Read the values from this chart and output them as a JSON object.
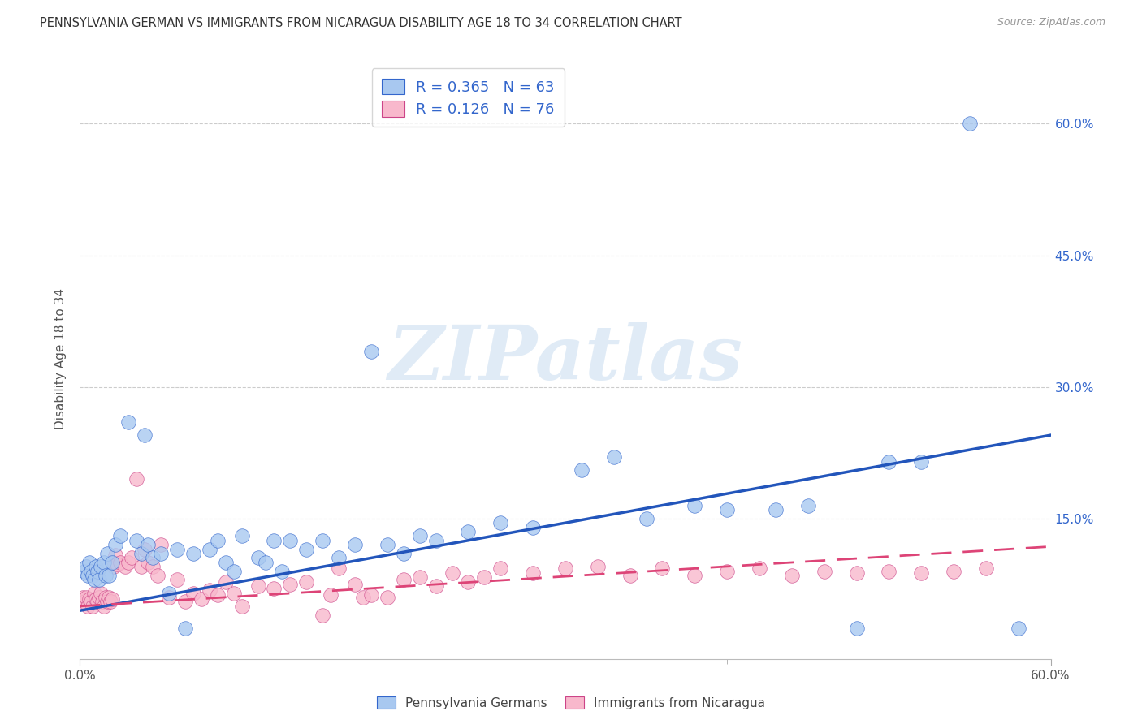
{
  "title": "PENNSYLVANIA GERMAN VS IMMIGRANTS FROM NICARAGUA DISABILITY AGE 18 TO 34 CORRELATION CHART",
  "source": "Source: ZipAtlas.com",
  "ylabel": "Disability Age 18 to 34",
  "xlim": [
    0.0,
    0.6
  ],
  "ylim": [
    -0.01,
    0.675
  ],
  "ytick_positions": [
    0.15,
    0.3,
    0.45,
    0.6
  ],
  "ytick_labels": [
    "15.0%",
    "30.0%",
    "45.0%",
    "60.0%"
  ],
  "xtick_labels": [
    "0.0%",
    "60.0%"
  ],
  "blue_fill": "#a8c8f0",
  "blue_edge": "#3366cc",
  "pink_fill": "#f8b8cc",
  "pink_edge": "#cc4488",
  "blue_line_color": "#2255bb",
  "pink_line_color": "#dd4477",
  "right_axis_color": "#3366cc",
  "watermark_text": "ZIPatlas",
  "bottom_label_blue": "Pennsylvania Germans",
  "bottom_label_pink": "Immigrants from Nicaragua",
  "legend_blue_R": "0.365",
  "legend_blue_N": "63",
  "legend_pink_R": "0.126",
  "legend_pink_N": "76",
  "blue_trend_x": [
    0.0,
    0.6
  ],
  "blue_trend_y": [
    0.045,
    0.245
  ],
  "pink_trend_x": [
    0.0,
    0.6
  ],
  "pink_trend_y": [
    0.05,
    0.118
  ],
  "blue_x": [
    0.003,
    0.004,
    0.005,
    0.006,
    0.007,
    0.008,
    0.009,
    0.01,
    0.011,
    0.012,
    0.013,
    0.015,
    0.016,
    0.017,
    0.018,
    0.02,
    0.022,
    0.025,
    0.03,
    0.035,
    0.038,
    0.04,
    0.042,
    0.045,
    0.05,
    0.055,
    0.06,
    0.065,
    0.07,
    0.08,
    0.085,
    0.09,
    0.095,
    0.1,
    0.11,
    0.115,
    0.12,
    0.125,
    0.13,
    0.14,
    0.15,
    0.16,
    0.17,
    0.18,
    0.19,
    0.2,
    0.21,
    0.22,
    0.24,
    0.26,
    0.28,
    0.31,
    0.33,
    0.35,
    0.38,
    0.4,
    0.43,
    0.45,
    0.48,
    0.5,
    0.52,
    0.55,
    0.58
  ],
  "blue_y": [
    0.09,
    0.095,
    0.085,
    0.1,
    0.09,
    0.085,
    0.08,
    0.095,
    0.09,
    0.08,
    0.095,
    0.1,
    0.085,
    0.11,
    0.085,
    0.1,
    0.12,
    0.13,
    0.26,
    0.125,
    0.11,
    0.245,
    0.12,
    0.105,
    0.11,
    0.065,
    0.115,
    0.025,
    0.11,
    0.115,
    0.125,
    0.1,
    0.09,
    0.13,
    0.105,
    0.1,
    0.125,
    0.09,
    0.125,
    0.115,
    0.125,
    0.105,
    0.12,
    0.34,
    0.12,
    0.11,
    0.13,
    0.125,
    0.135,
    0.145,
    0.14,
    0.205,
    0.22,
    0.15,
    0.165,
    0.16,
    0.16,
    0.165,
    0.025,
    0.215,
    0.215,
    0.6,
    0.025
  ],
  "pink_x": [
    0.002,
    0.003,
    0.004,
    0.005,
    0.006,
    0.007,
    0.008,
    0.009,
    0.01,
    0.011,
    0.012,
    0.013,
    0.014,
    0.015,
    0.016,
    0.017,
    0.018,
    0.019,
    0.02,
    0.021,
    0.022,
    0.023,
    0.025,
    0.028,
    0.03,
    0.032,
    0.035,
    0.038,
    0.04,
    0.042,
    0.045,
    0.048,
    0.05,
    0.055,
    0.06,
    0.065,
    0.07,
    0.075,
    0.08,
    0.085,
    0.09,
    0.095,
    0.1,
    0.11,
    0.12,
    0.13,
    0.14,
    0.15,
    0.155,
    0.16,
    0.17,
    0.175,
    0.18,
    0.19,
    0.2,
    0.21,
    0.22,
    0.23,
    0.24,
    0.25,
    0.26,
    0.28,
    0.3,
    0.32,
    0.34,
    0.36,
    0.38,
    0.4,
    0.42,
    0.44,
    0.46,
    0.48,
    0.5,
    0.52,
    0.54,
    0.56
  ],
  "pink_y": [
    0.06,
    0.055,
    0.06,
    0.05,
    0.058,
    0.055,
    0.05,
    0.065,
    0.058,
    0.055,
    0.06,
    0.065,
    0.055,
    0.05,
    0.06,
    0.055,
    0.06,
    0.055,
    0.058,
    0.095,
    0.108,
    0.098,
    0.1,
    0.095,
    0.1,
    0.105,
    0.195,
    0.095,
    0.115,
    0.1,
    0.095,
    0.085,
    0.12,
    0.06,
    0.08,
    0.055,
    0.065,
    0.058,
    0.068,
    0.063,
    0.078,
    0.065,
    0.05,
    0.073,
    0.07,
    0.075,
    0.078,
    0.04,
    0.063,
    0.093,
    0.075,
    0.06,
    0.063,
    0.06,
    0.08,
    0.083,
    0.073,
    0.088,
    0.078,
    0.083,
    0.093,
    0.088,
    0.093,
    0.095,
    0.085,
    0.093,
    0.085,
    0.09,
    0.093,
    0.085,
    0.09,
    0.088,
    0.09,
    0.088,
    0.09,
    0.093
  ]
}
